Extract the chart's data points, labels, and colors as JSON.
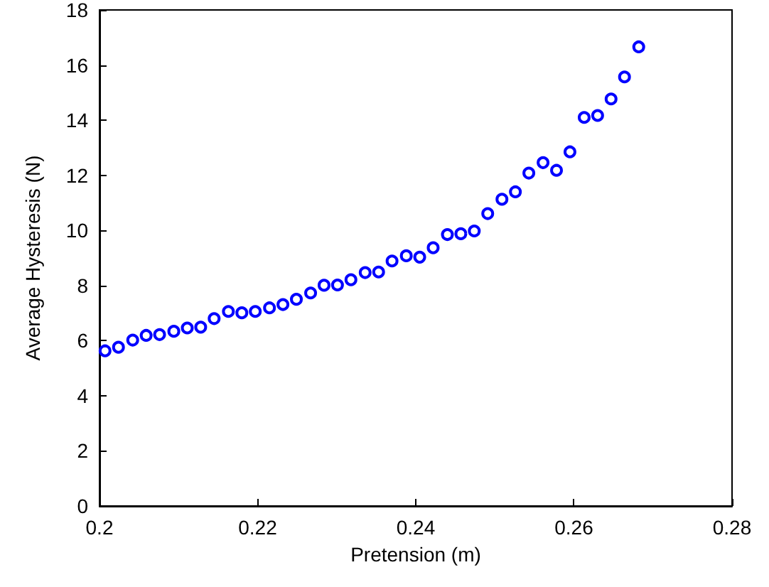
{
  "chart_data": {
    "type": "scatter",
    "xlabel": "Pretension (m)",
    "ylabel": "Average Hysteresis (N)",
    "x": [
      0.2007,
      0.2024,
      0.2042,
      0.2059,
      0.2076,
      0.2094,
      0.2111,
      0.2128,
      0.2145,
      0.2163,
      0.218,
      0.2197,
      0.2215,
      0.2232,
      0.2249,
      0.2267,
      0.2284,
      0.2301,
      0.2318,
      0.2336,
      0.2353,
      0.237,
      0.2388,
      0.2405,
      0.2422,
      0.244,
      0.2457,
      0.2474,
      0.2491,
      0.2509,
      0.2526,
      0.2543,
      0.2561,
      0.2578,
      0.2595,
      0.2613,
      0.263,
      0.2647,
      0.2664,
      0.2682
    ],
    "series": [
      {
        "color": "#0000ff",
        "values": [
          5.63,
          5.76,
          6.02,
          6.19,
          6.22,
          6.34,
          6.46,
          6.49,
          6.8,
          7.06,
          7.01,
          7.06,
          7.19,
          7.31,
          7.5,
          7.73,
          8.01,
          8.02,
          8.21,
          8.47,
          8.49,
          8.89,
          9.08,
          9.03,
          9.37,
          9.85,
          9.88,
          9.98,
          10.61,
          11.13,
          11.4,
          12.08,
          12.46,
          12.18,
          12.85,
          14.1,
          14.17,
          14.77,
          15.57,
          16.66
        ]
      }
    ],
    "xlim": [
      0.2,
      0.28
    ],
    "xticks": [
      0.2,
      0.22,
      0.24,
      0.26,
      0.28
    ],
    "ylim": [
      0,
      18
    ],
    "yticks": [
      0,
      2,
      4,
      6,
      8,
      10,
      12,
      14,
      16,
      18
    ],
    "grid": false,
    "marker": "circle"
  }
}
